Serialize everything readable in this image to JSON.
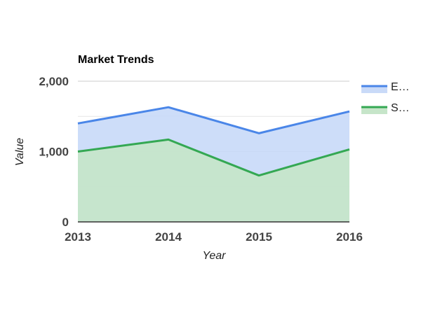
{
  "chart_data": {
    "type": "area",
    "stacked": false,
    "title": "Market Trends",
    "xlabel": "Year",
    "ylabel": "Value",
    "ylim": [
      0,
      2000
    ],
    "y_ticks": [
      0,
      1000,
      2000
    ],
    "y_tick_labels": [
      "0",
      "1,000",
      "2,000"
    ],
    "y_minor_gridlines": [
      500,
      1500
    ],
    "grid": true,
    "legend_position": "right",
    "x": [
      "2013",
      "2014",
      "2015",
      "2016"
    ],
    "series": [
      {
        "name": "E…",
        "values": [
          1400,
          1630,
          1260,
          1570
        ],
        "color": "#4a86e8",
        "fill": "#c9daf8"
      },
      {
        "name": "S…",
        "values": [
          1000,
          1170,
          660,
          1030
        ],
        "color": "#34a853",
        "fill": "#c6e5c9"
      }
    ]
  }
}
